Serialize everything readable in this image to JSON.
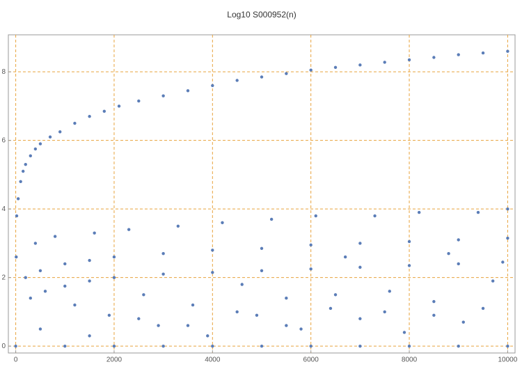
{
  "chart_data": {
    "type": "scatter",
    "title": "Log10 S000952(n)",
    "color": "#5b7db7",
    "grid": true,
    "grid_color": "#e8a33d",
    "xlim": [
      -150,
      10150
    ],
    "ylim": [
      -0.2,
      9.08
    ],
    "xticks": [
      0,
      2000,
      4000,
      6000,
      8000,
      10000
    ],
    "yticks": [
      0,
      2,
      4,
      6,
      8
    ],
    "x": [
      10,
      20,
      50,
      100,
      150,
      200,
      300,
      400,
      500,
      700,
      900,
      1200,
      1500,
      1800,
      2100,
      2500,
      3000,
      3500,
      4000,
      4500,
      5000,
      5500,
      6000,
      6500,
      7000,
      7500,
      8000,
      8500,
      9000,
      9500,
      10000,
      200,
      500,
      1000,
      1500,
      2000,
      3000,
      4000,
      5000,
      6000,
      7000,
      8000,
      9000,
      10000,
      300,
      600,
      1000,
      1500,
      2000,
      3000,
      4000,
      5000,
      6000,
      7000,
      8000,
      9000,
      9900,
      400,
      800,
      1200,
      1600,
      1900,
      2300,
      2600,
      2900,
      3300,
      3600,
      3900,
      4200,
      4600,
      4900,
      5200,
      5500,
      5800,
      6100,
      6400,
      6700,
      7000,
      7300,
      7600,
      7900,
      8200,
      8500,
      8800,
      9100,
      9400,
      9700,
      10000,
      500,
      1500,
      2500,
      3500,
      4500,
      5500,
      6500,
      7500,
      8500,
      9500,
      0,
      1000,
      2000,
      3000,
      4000,
      5000,
      6000,
      7000,
      8000,
      9000,
      10000
    ],
    "y": [
      2.6,
      3.8,
      4.3,
      4.8,
      5.1,
      5.3,
      5.55,
      5.75,
      5.9,
      6.1,
      6.25,
      6.5,
      6.7,
      6.85,
      7.0,
      7.15,
      7.3,
      7.45,
      7.6,
      7.75,
      7.85,
      7.95,
      8.05,
      8.13,
      8.2,
      8.28,
      8.35,
      8.42,
      8.5,
      8.55,
      8.6,
      2.0,
      2.2,
      2.4,
      2.5,
      2.6,
      2.7,
      2.8,
      2.85,
      2.95,
      3.0,
      3.05,
      3.1,
      3.15,
      1.4,
      1.6,
      1.75,
      1.9,
      2.0,
      2.1,
      2.15,
      2.2,
      2.25,
      2.3,
      2.35,
      2.4,
      2.45,
      3.0,
      3.2,
      1.2,
      3.3,
      0.9,
      3.4,
      1.5,
      0.6,
      3.5,
      1.2,
      0.3,
      3.6,
      1.8,
      0.9,
      3.7,
      1.4,
      0.5,
      3.8,
      1.1,
      2.6,
      0.8,
      3.8,
      1.6,
      0.4,
      3.9,
      1.3,
      2.7,
      0.7,
      3.9,
      1.9,
      4.0,
      0.5,
      0.3,
      0.8,
      0.6,
      1.0,
      0.6,
      1.5,
      1.0,
      0.9,
      1.1,
      0,
      0,
      0,
      0,
      0,
      0,
      0,
      0,
      0,
      0,
      0
    ]
  }
}
